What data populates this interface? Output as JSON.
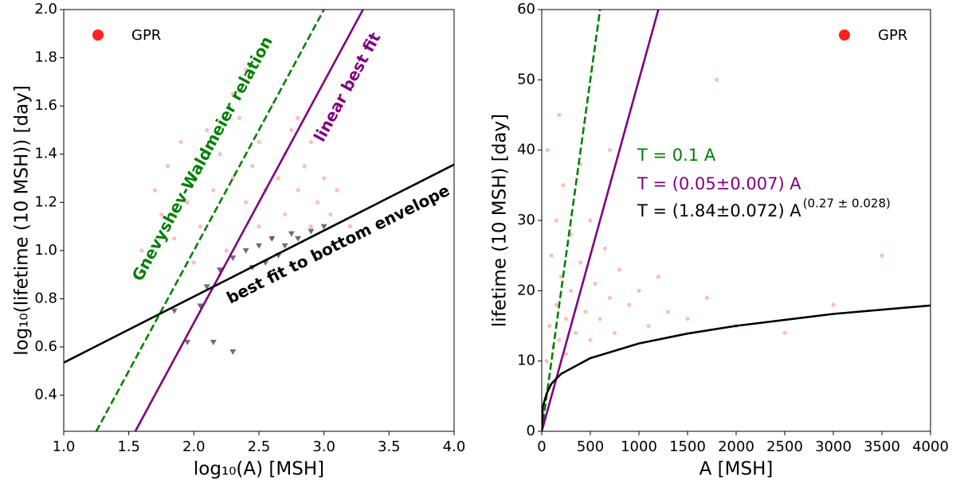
{
  "chart_data": [
    {
      "type": "scatter",
      "xlabel": "log₁₀(A) [MSH]",
      "ylabel": "log₁₀(lifetime (10 MSH)) [day]",
      "xlim": [
        1,
        4
      ],
      "ylim": [
        0.25,
        2.0
      ],
      "xticks": [
        {
          "value": 1,
          "label": "1.0"
        },
        1.5,
        {
          "value": 2,
          "label": "2.0"
        },
        2.5,
        {
          "value": 3,
          "label": "3.0"
        },
        3.5,
        {
          "value": 4,
          "label": "4.0"
        }
      ],
      "yticks": [
        0.4,
        0.6,
        0.8,
        {
          "value": 1,
          "label": "1.0"
        },
        1.2,
        1.4,
        1.6,
        1.8,
        {
          "value": 2,
          "label": "2.0"
        }
      ],
      "legend": "upper left",
      "series": [
        {
          "name": "GPR",
          "color": "#ff2020",
          "marker": "circle",
          "x": [
            1.7,
            1.75,
            1.8,
            1.85,
            1.9,
            1.95,
            2.0,
            2.05,
            2.1,
            2.15,
            2.2,
            2.25,
            2.3,
            2.35,
            2.4,
            2.45,
            2.5,
            2.5,
            2.55,
            2.6,
            2.6,
            2.65,
            2.7,
            2.7,
            2.75,
            2.8,
            2.85,
            2.9,
            2.9,
            2.95,
            3.0,
            3.05,
            3.1,
            3.2,
            2.3,
            2.0,
            2.2,
            1.6,
            2.4,
            2.8
          ],
          "y": [
            1.25,
            1.15,
            1.35,
            1.05,
            1.45,
            1.2,
            1.3,
            1.1,
            1.5,
            1.25,
            1.4,
            1.0,
            1.3,
            1.55,
            1.2,
            1.35,
            1.1,
            1.45,
            1.25,
            1.6,
            1.05,
            1.3,
            1.4,
            1.15,
            1.5,
            1.25,
            1.35,
            1.1,
            1.45,
            1.2,
            1.3,
            1.15,
            1.25,
            1.1,
            1.65,
            0.95,
            0.9,
            1.0,
            1.75,
            1.55
          ]
        },
        {
          "color": "#222222",
          "marker": "triangle",
          "x": [
            2.3,
            2.4,
            2.5,
            2.55,
            2.6,
            2.7,
            2.75,
            2.8,
            2.9,
            3.0,
            2.2,
            2.1,
            2.45,
            2.65,
            1.95,
            2.15,
            2.3,
            1.85,
            2.05
          ],
          "y": [
            0.97,
            1.0,
            1.02,
            0.95,
            1.05,
            1.02,
            1.07,
            1.05,
            1.08,
            1.1,
            0.92,
            0.85,
            0.93,
            0.98,
            0.62,
            0.62,
            0.58,
            0.75,
            0.77
          ]
        }
      ],
      "lines": [
        {
          "color": "#008000",
          "dashed": true,
          "x": [
            1.25,
            3.0
          ],
          "y": [
            0.25,
            2.0
          ]
        },
        {
          "color": "#800080",
          "dashed": false,
          "x": [
            1.55,
            3.3
          ],
          "y": [
            0.25,
            2.0
          ]
        },
        {
          "color": "#000000",
          "dashed": false,
          "x": [
            1,
            4
          ],
          "y": [
            0.535,
            1.357
          ]
        }
      ],
      "annotations": [
        {
          "text": "Gnevyshev-Waldmeier relation",
          "color": "#008000"
        },
        {
          "text": "linear best fit",
          "color": "#800080"
        },
        {
          "text": "best fit to bottom envelope",
          "color": "#000000"
        }
      ]
    },
    {
      "type": "scatter",
      "xlabel": "A [MSH]",
      "ylabel": "lifetime (10 MSH) [day]",
      "xlim": [
        0,
        4000
      ],
      "ylim": [
        0,
        60
      ],
      "xticks": [
        0,
        500,
        1000,
        1500,
        2000,
        2500,
        3000,
        3500,
        4000
      ],
      "yticks": [
        0,
        10,
        20,
        30,
        40,
        50,
        60
      ],
      "legend": "upper right",
      "series": [
        {
          "name": "GPR",
          "color": "#ff2020",
          "marker": "circle",
          "x": [
            50,
            80,
            100,
            120,
            150,
            150,
            180,
            200,
            220,
            250,
            250,
            300,
            300,
            350,
            400,
            400,
            450,
            500,
            500,
            550,
            600,
            650,
            700,
            750,
            800,
            900,
            1000,
            1100,
            1200,
            1300,
            1500,
            1700,
            1800,
            2000,
            2500,
            3000,
            3500,
            60,
            180,
            700
          ],
          "y": [
            10,
            15,
            25,
            12,
            30,
            18,
            13,
            22,
            35,
            16,
            11,
            28,
            20,
            14,
            24,
            38,
            17,
            30,
            13,
            21,
            16,
            26,
            19,
            14,
            23,
            18,
            20,
            15,
            22,
            17,
            16,
            19,
            50,
            15,
            14,
            18,
            25,
            40,
            45,
            40
          ]
        }
      ],
      "lines": [
        {
          "color": "#008000",
          "dashed": true,
          "x": [
            0,
            600
          ],
          "y": [
            0,
            60
          ]
        },
        {
          "color": "#800080",
          "dashed": false,
          "x": [
            0,
            1200
          ],
          "y": [
            0,
            60
          ]
        },
        {
          "color": "#000000",
          "dashed": false,
          "x": [
            0,
            10,
            50,
            100,
            200,
            500,
            1000,
            1500,
            2000,
            3000,
            4000
          ],
          "y": [
            0,
            3.43,
            5.35,
            6.78,
            8.18,
            10.4,
            12.5,
            13.9,
            15.0,
            16.7,
            17.9
          ]
        }
      ],
      "annotations": [
        {
          "text": "T = 0.1 A",
          "color": "#008000"
        },
        {
          "text": "T = (0.05±0.007) A",
          "color": "#800080"
        },
        {
          "text": "T = (1.84±0.072) A",
          "sup": "(0.27 ± 0.028)",
          "color": "#000000"
        }
      ]
    }
  ]
}
